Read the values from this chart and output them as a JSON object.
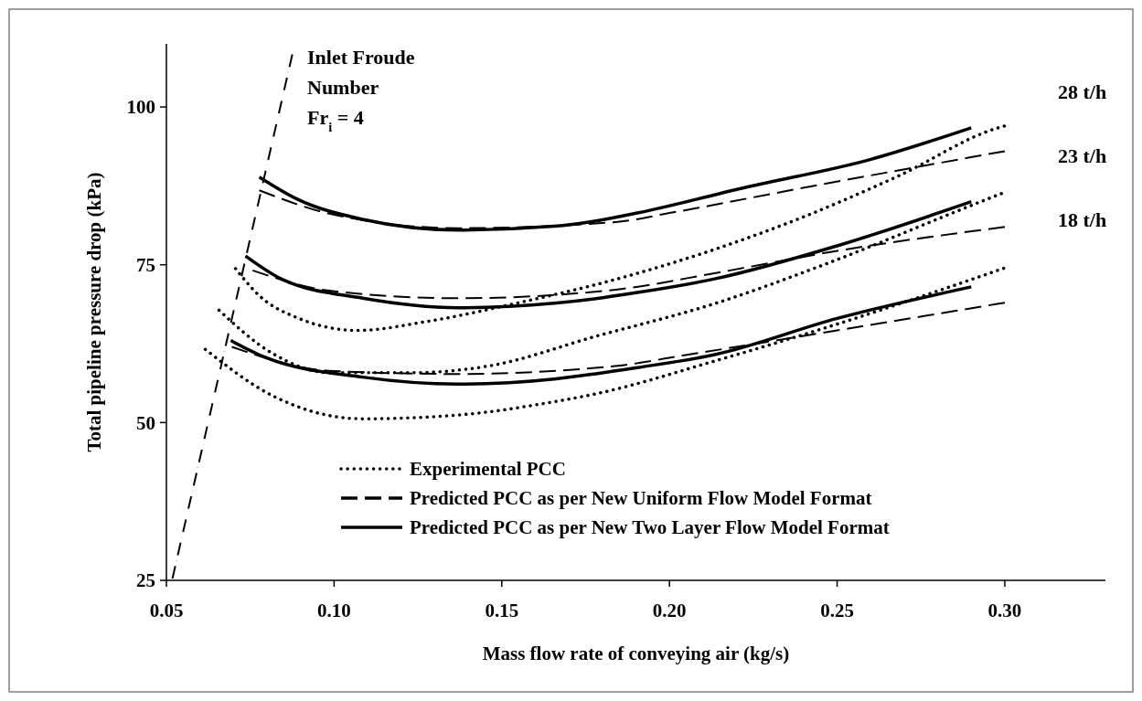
{
  "chart_data": {
    "type": "line",
    "xlabel": "Mass flow rate of conveying air (kg/s)",
    "ylabel": "Total pipeline pressure drop (kPa)",
    "xlim": [
      0.05,
      0.33
    ],
    "xticks": [
      {
        "value": 0.05,
        "label": "0.05"
      },
      {
        "value": 0.1,
        "label": "0.10"
      },
      {
        "value": 0.15,
        "label": "0.15"
      },
      {
        "value": 0.2,
        "label": "0.20"
      },
      {
        "value": 0.25,
        "label": "0.25"
      },
      {
        "value": 0.3,
        "label": "0.30"
      }
    ],
    "ylim": [
      25,
      110
    ],
    "yticks": [
      25,
      50,
      75,
      100
    ],
    "grid": false,
    "legend": "bottom",
    "marker": "none",
    "series": [
      {
        "name": "Experimental PCC",
        "color": "#000000",
        "line_style": "dotted",
        "x": [
          0.0706,
          0.0777,
          0.089,
          0.107,
          0.1275,
          0.156,
          0.1776,
          0.2138,
          0.241,
          0.268,
          0.298,
          0.3
        ],
        "values": [
          74.4,
          70.1,
          66.6,
          64.6,
          66.0,
          69.1,
          71.8,
          77.5,
          82.8,
          89.0,
          96.7,
          97
        ]
      },
      {
        "color": "#000000",
        "line_style": "dotted",
        "x": [
          0.0657,
          0.0815,
          0.0986,
          0.1226,
          0.1465,
          0.1776,
          0.2138,
          0.2465,
          0.29,
          0.3
        ],
        "values": [
          67.8,
          61.0,
          57.9,
          57.9,
          59.0,
          63.6,
          68.9,
          75.1,
          84.4,
          86.5
        ]
      },
      {
        "color": "#000000",
        "line_style": "dotted",
        "x": [
          0.0616,
          0.0815,
          0.1085,
          0.137,
          0.1656,
          0.1776,
          0.2138,
          0.25,
          0.2775,
          0.3
        ],
        "values": [
          61.6,
          54.3,
          50.6,
          51.2,
          53.3,
          54.5,
          59.8,
          65.6,
          70.4,
          74.5
        ]
      },
      {
        "name": "Predicted PCC as per New Uniform Flow Model Format",
        "color": "#000000",
        "line_style": "dashed",
        "x": [
          0.0777,
          0.0986,
          0.137,
          0.1846,
          0.2,
          0.241,
          0.3
        ],
        "values": [
          86.8,
          83.1,
          80.8,
          81.8,
          83.2,
          87.3,
          93
        ]
      },
      {
        "color": "#000000",
        "line_style": "dashed",
        "x": [
          0.0757,
          0.0986,
          0.137,
          0.1846,
          0.2138,
          0.25,
          0.3
        ],
        "values": [
          74.1,
          70.9,
          69.7,
          71.1,
          73.7,
          77.2,
          81
        ]
      },
      {
        "color": "#000000",
        "line_style": "dashed",
        "x": [
          0.0695,
          0.0986,
          0.137,
          0.1846,
          0.2048,
          0.25,
          0.3
        ],
        "values": [
          62.0,
          58.2,
          57.7,
          59.0,
          60.7,
          64.6,
          69
        ]
      },
      {
        "name": "Predicted PCC as per New Two Layer Flow Model Format",
        "color": "#000000",
        "line_style": "solid",
        "x": [
          0.0777,
          0.089,
          0.1085,
          0.137,
          0.1656,
          0.1776,
          0.1904,
          0.223,
          0.2593,
          0.29
        ],
        "values": [
          88.9,
          85.4,
          82.2,
          80.5,
          81.1,
          81.9,
          83.2,
          87.3,
          91.6,
          96.7
        ]
      },
      {
        "color": "#000000",
        "line_style": "solid",
        "x": [
          0.0736,
          0.0845,
          0.1085,
          0.137,
          0.1656,
          0.1776,
          0.1904,
          0.2138,
          0.25,
          0.29
        ],
        "values": [
          76.4,
          72.7,
          69.7,
          68.2,
          68.9,
          69.6,
          70.6,
          72.8,
          78.0,
          85.0
        ]
      },
      {
        "color": "#000000",
        "line_style": "solid",
        "x": [
          0.0692,
          0.0796,
          0.1085,
          0.137,
          0.1656,
          0.1776,
          0.1904,
          0.2138,
          0.25,
          0.29
        ],
        "values": [
          63.0,
          60.3,
          57.2,
          56.1,
          56.9,
          57.7,
          58.7,
          60.8,
          66.5,
          71.5
        ]
      },
      {
        "color": "#000000",
        "line_style": "dashdot",
        "x": [
          0.0518,
          0.0877
        ],
        "values": [
          25.3,
          108.7
        ]
      }
    ],
    "annotations": [
      "28 t/h",
      "23 t/h",
      "18 t/h",
      "Inlet Froude\nNumber\nFr$_{i}$ = 4"
    ]
  }
}
